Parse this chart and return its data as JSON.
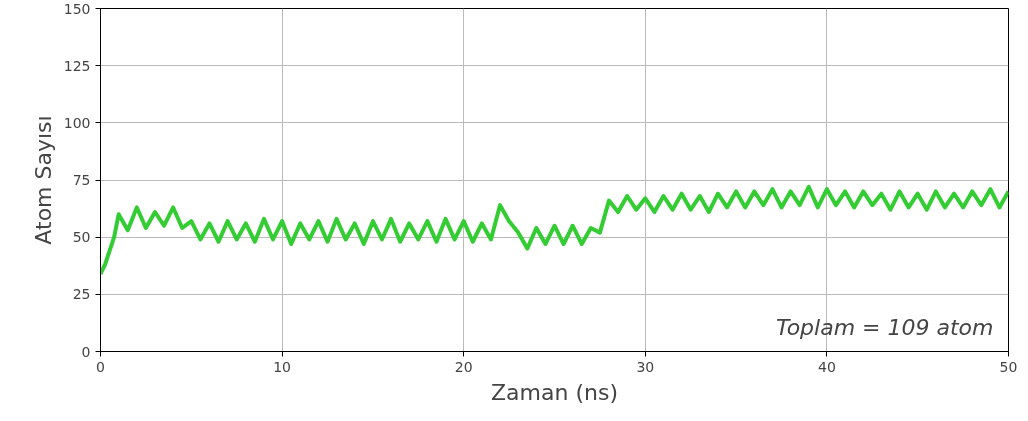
{
  "chart_data": {
    "type": "line",
    "xlabel": "Zaman (ns)",
    "ylabel": "Atom Sayısı",
    "x": [
      0,
      0.25,
      0.5,
      0.75,
      1,
      1.5,
      2,
      2.5,
      3,
      3.5,
      4,
      4.5,
      5,
      5.5,
      6,
      6.5,
      7,
      7.5,
      8,
      8.5,
      9,
      9.5,
      10,
      10.5,
      11,
      11.5,
      12,
      12.5,
      13,
      13.5,
      14,
      14.5,
      15,
      15.5,
      16,
      16.5,
      17,
      17.5,
      18,
      18.5,
      19,
      19.5,
      20,
      20.5,
      21,
      21.5,
      22,
      22.5,
      23,
      23.5,
      24,
      24.5,
      25,
      25.5,
      26,
      26.5,
      27,
      27.5,
      28,
      28.5,
      29,
      29.5,
      30,
      30.5,
      31,
      31.5,
      32,
      32.5,
      33,
      33.5,
      34,
      34.5,
      35,
      35.5,
      36,
      36.5,
      37,
      37.5,
      38,
      38.5,
      39,
      39.5,
      40,
      40.5,
      41,
      41.5,
      42,
      42.5,
      43,
      43.5,
      44,
      44.5,
      45,
      45.5,
      46,
      46.5,
      47,
      47.5,
      48,
      48.5,
      49,
      49.5,
      50
    ],
    "series": [
      {
        "color": "#33cc33",
        "values": [
          34,
          38,
          44,
          50,
          60,
          53,
          63,
          54,
          61,
          55,
          63,
          54,
          57,
          49,
          56,
          48,
          57,
          49,
          56,
          48,
          58,
          49,
          57,
          47,
          56,
          49,
          57,
          48,
          58,
          49,
          56,
          47,
          57,
          49,
          58,
          48,
          56,
          49,
          57,
          48,
          58,
          49,
          57,
          48,
          56,
          49,
          64,
          57,
          52,
          45,
          54,
          47,
          55,
          47,
          55,
          47,
          54,
          52,
          66,
          61,
          68,
          62,
          67,
          61,
          68,
          62,
          69,
          62,
          68,
          61,
          69,
          63,
          70,
          63,
          70,
          64,
          71,
          63,
          70,
          64,
          72,
          63,
          71,
          64,
          70,
          63,
          70,
          64,
          69,
          62,
          70,
          63,
          69,
          62,
          70,
          63,
          69,
          63,
          70,
          64,
          71,
          63,
          70
        ]
      }
    ],
    "xlim": [
      0,
      50
    ],
    "ylim": [
      0,
      150
    ],
    "xticks": [
      0,
      10,
      20,
      30,
      40,
      50
    ],
    "yticks": [
      0,
      25,
      50,
      75,
      100,
      125,
      150
    ],
    "grid": true,
    "line_style": "solid",
    "marker": "none",
    "annotations": [
      "Toplam = 109 atom"
    ]
  }
}
